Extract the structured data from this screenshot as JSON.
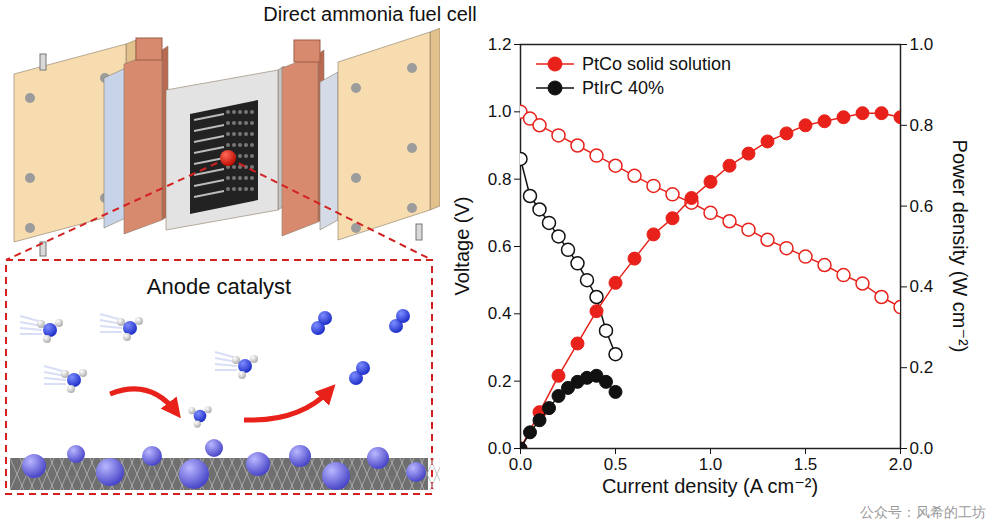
{
  "diagram": {
    "label": "Anode catalyst"
  },
  "chart_data": {
    "type": "line",
    "title": "Direct ammonia fuel cell",
    "x_label": "Current density (A cm⁻²)",
    "y_label": "Voltage (V)",
    "y2_label": "Power density (W cm⁻²)",
    "xlim": [
      0,
      2
    ],
    "xticks": [
      {
        "value": 0,
        "label": "0.0"
      },
      0.5,
      {
        "value": 1,
        "label": "1.0"
      },
      1.5,
      {
        "value": 2,
        "label": "2.0"
      }
    ],
    "ylim": [
      0,
      1.2
    ],
    "yticks": [
      {
        "value": 0,
        "label": "0.0"
      },
      0.2,
      0.4,
      0.6,
      0.8,
      {
        "value": 1,
        "label": "1.0"
      },
      1.2
    ],
    "y2lim": [
      0,
      1
    ],
    "y2ticks": [
      {
        "value": 0,
        "label": "0.0"
      },
      0.2,
      0.4,
      0.6,
      0.8,
      {
        "value": 1,
        "label": "1.0"
      }
    ],
    "legend": "upper left",
    "annotations": [
      {
        "text": "公众号：风希的工坊"
      }
    ],
    "series": [
      {
        "name": "PtCo solid solution",
        "color": "#e8221b",
        "marker": "open circle",
        "axis": "y",
        "x": [
          0,
          0.05,
          0.1,
          0.2,
          0.3,
          0.4,
          0.5,
          0.6,
          0.7,
          0.8,
          0.9,
          1.0,
          1.1,
          1.2,
          1.3,
          1.4,
          1.5,
          1.6,
          1.7,
          1.8,
          1.9,
          2.0
        ],
        "values": [
          1.0,
          0.98,
          0.96,
          0.93,
          0.9,
          0.87,
          0.84,
          0.81,
          0.78,
          0.755,
          0.73,
          0.7,
          0.675,
          0.65,
          0.62,
          0.595,
          0.57,
          0.545,
          0.515,
          0.49,
          0.45,
          0.42
        ]
      },
      {
        "name": "PtCo solid solution",
        "color": "#e8221b",
        "marker": "filled circle",
        "axis": "y2",
        "x": [
          0,
          0.1,
          0.2,
          0.3,
          0.4,
          0.5,
          0.6,
          0.7,
          0.8,
          0.9,
          1.0,
          1.1,
          1.2,
          1.3,
          1.4,
          1.5,
          1.6,
          1.7,
          1.8,
          1.9,
          2.0
        ],
        "values": [
          0,
          0.09,
          0.18,
          0.26,
          0.34,
          0.41,
          0.47,
          0.53,
          0.57,
          0.62,
          0.66,
          0.7,
          0.73,
          0.76,
          0.78,
          0.8,
          0.81,
          0.82,
          0.83,
          0.83,
          0.82
        ]
      },
      {
        "name": "PtIrC 40%",
        "color": "#111111",
        "marker": "open circle",
        "axis": "y",
        "x": [
          0,
          0.05,
          0.1,
          0.15,
          0.2,
          0.25,
          0.3,
          0.35,
          0.4,
          0.45,
          0.5
        ],
        "values": [
          0.86,
          0.75,
          0.71,
          0.67,
          0.63,
          0.59,
          0.55,
          0.5,
          0.45,
          0.35,
          0.28
        ]
      },
      {
        "name": "PtIrC 40%",
        "color": "#111111",
        "marker": "filled circle",
        "axis": "y2",
        "x": [
          0,
          0.05,
          0.1,
          0.15,
          0.2,
          0.25,
          0.3,
          0.35,
          0.4,
          0.45,
          0.5
        ],
        "values": [
          0,
          0.04,
          0.07,
          0.1,
          0.13,
          0.15,
          0.165,
          0.175,
          0.18,
          0.165,
          0.14
        ]
      }
    ]
  }
}
